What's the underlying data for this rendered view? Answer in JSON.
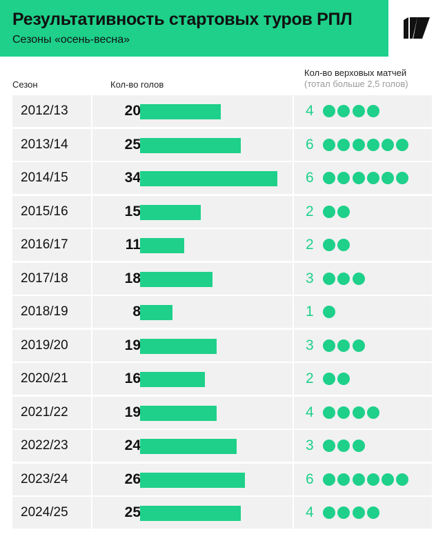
{
  "header": {
    "title": "Результативность стартовых туров РПЛ",
    "subtitle": "Сезоны «осень-весна»"
  },
  "columns": {
    "season": "Сезон",
    "goals": "Кол-во голов",
    "matches": "Кол-во верховых матчей",
    "matches_note": "(тотал больше 2,5 голов)"
  },
  "colors": {
    "accent": "#1ed08a",
    "row_bg": "#f1f1f1",
    "text": "#111111"
  },
  "chart_data": {
    "type": "bar",
    "title": "Результативность стартовых туров РПЛ",
    "subtitle": "Сезоны «осень-весна»",
    "categories": [
      "2012/13",
      "2013/14",
      "2014/15",
      "2015/16",
      "2016/17",
      "2017/18",
      "2018/19",
      "2019/20",
      "2020/21",
      "2021/22",
      "2022/23",
      "2023/24",
      "2024/25"
    ],
    "series": [
      {
        "name": "Кол-во голов",
        "values": [
          20,
          25,
          34,
          15,
          11,
          18,
          8,
          19,
          16,
          19,
          24,
          26,
          25
        ]
      },
      {
        "name": "Кол-во верховых матчей",
        "values": [
          4,
          6,
          6,
          2,
          2,
          3,
          1,
          3,
          2,
          4,
          3,
          6,
          4
        ]
      }
    ],
    "xmax": 34
  }
}
